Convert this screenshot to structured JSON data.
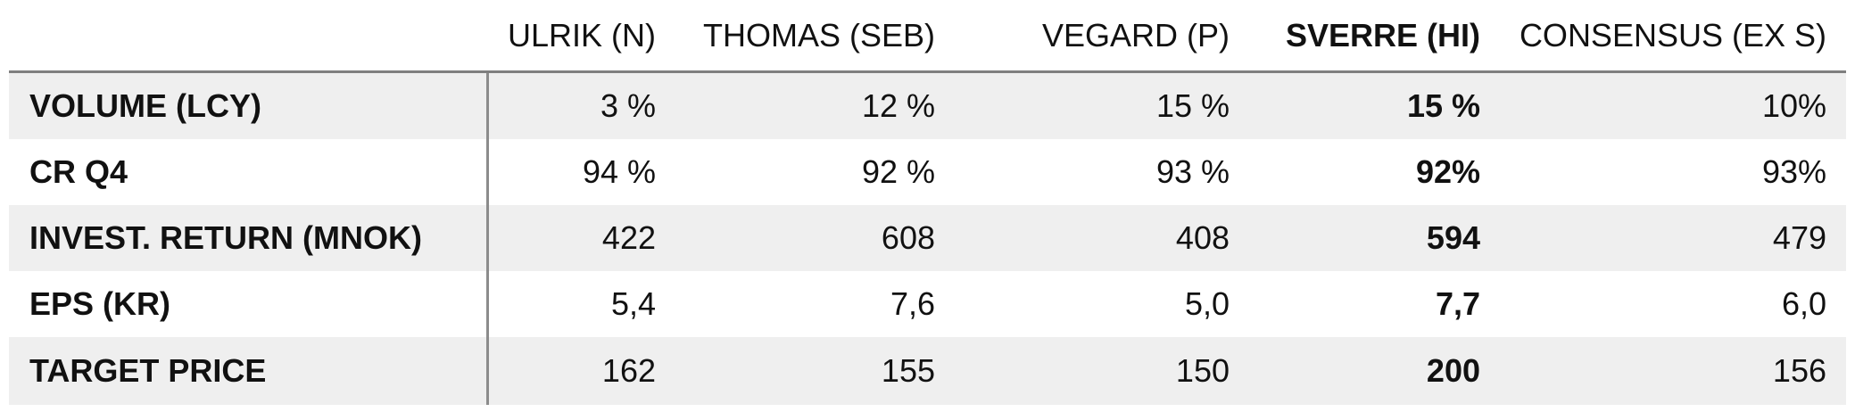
{
  "table": {
    "columns": [
      "ULRIK (N)",
      "THOMAS (SEB)",
      "VEGARD (P)",
      "SVERRE (HI)",
      "CONSENSUS (EX S)"
    ],
    "highlight_column": 3,
    "rows": [
      {
        "label": "VOLUME (LCY)",
        "cells": [
          "3 %",
          "12 %",
          "15 %",
          "15 %",
          "10%"
        ]
      },
      {
        "label": "CR Q4",
        "cells": [
          "94 %",
          "92 %",
          "93 %",
          "92%",
          "93%"
        ]
      },
      {
        "label": "INVEST. RETURN (MNOK)",
        "cells": [
          "422",
          "608",
          "408",
          "594",
          "479"
        ]
      },
      {
        "label": "EPS (KR)",
        "cells": [
          "5,4",
          "7,6",
          "5,0",
          "7,7",
          "6,0"
        ]
      },
      {
        "label": "TARGET PRICE",
        "cells": [
          "162",
          "155",
          "150",
          "200",
          "156"
        ]
      }
    ]
  },
  "colors": {
    "stripe": "#efefef",
    "rule": "#7f7f7f",
    "text": "#111111"
  }
}
